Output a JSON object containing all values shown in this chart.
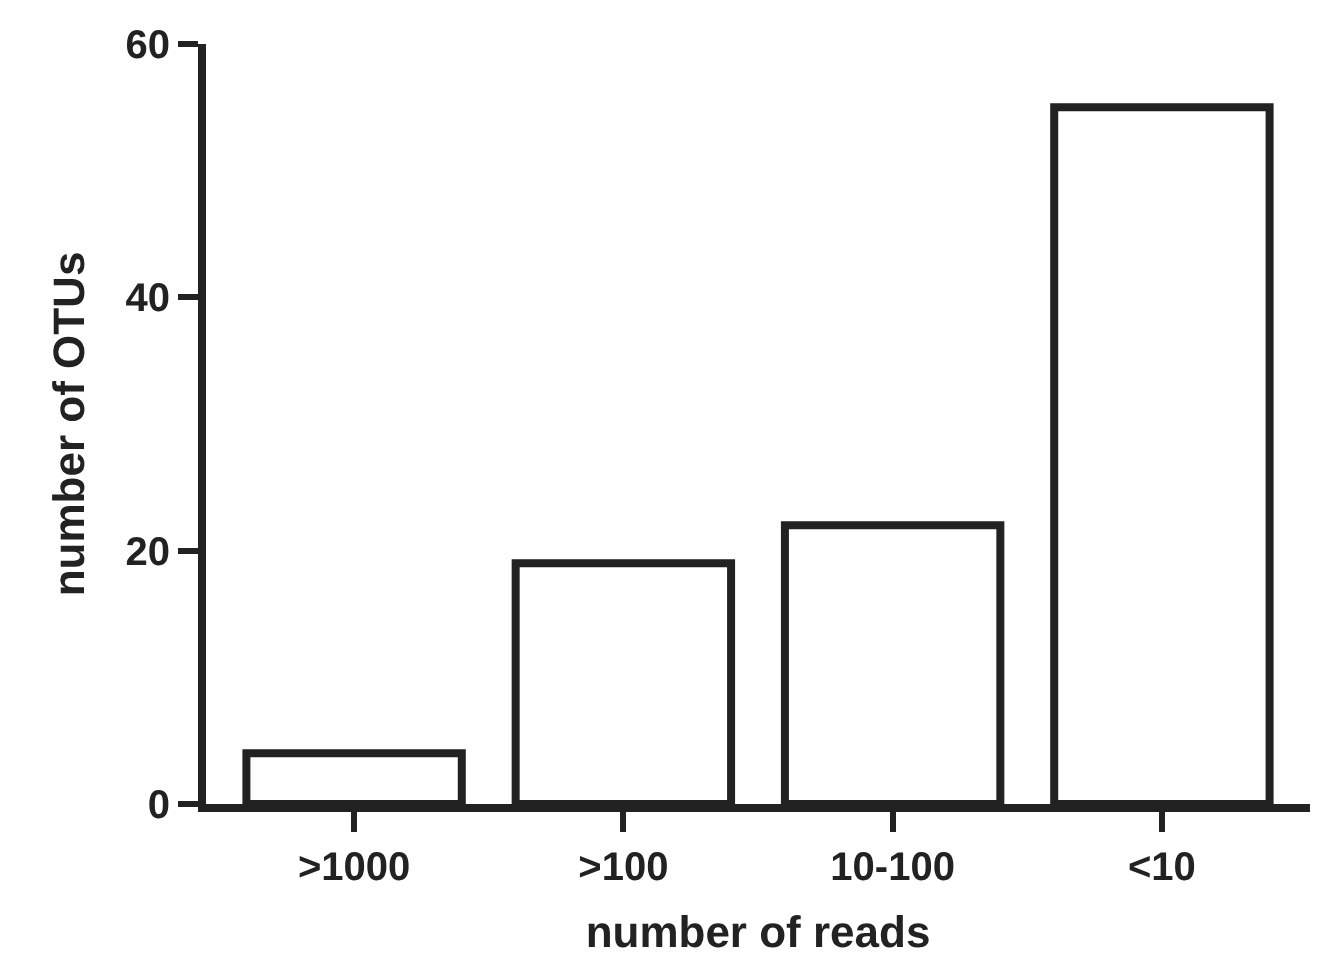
{
  "chart_data": {
    "type": "bar",
    "xlabel": "number of reads",
    "ylabel": "number of OTUs",
    "categories": [
      ">1000",
      ">100",
      "10-100",
      "<10"
    ],
    "series": [
      {
        "color": "#ffffff",
        "values": [
          4,
          19,
          22,
          55
        ]
      }
    ],
    "ylim": [
      0,
      60
    ],
    "yticks": [
      0,
      20,
      40,
      60
    ]
  }
}
